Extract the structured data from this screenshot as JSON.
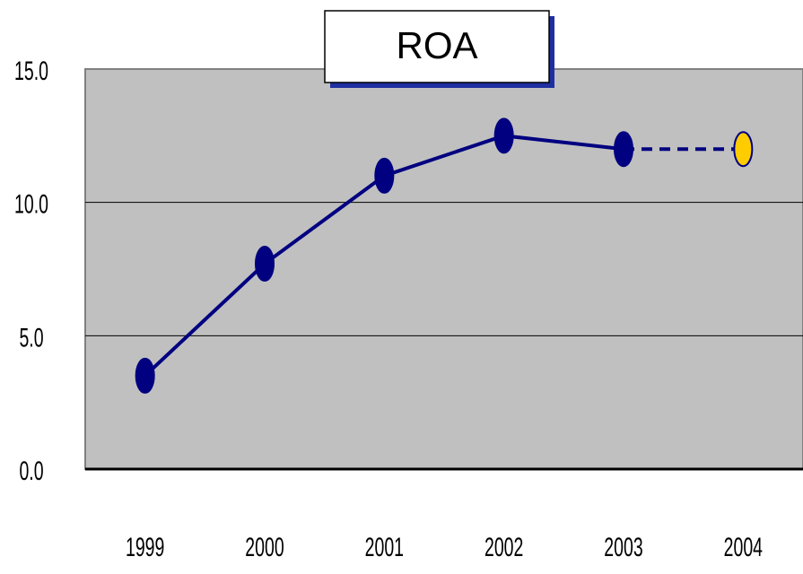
{
  "chart_data": {
    "type": "line",
    "title": "ROA",
    "categories": [
      "1999",
      "2000",
      "2001",
      "2002",
      "2003",
      "2004"
    ],
    "values": [
      3.5,
      7.7,
      11.0,
      12.5,
      12.0,
      12.0
    ],
    "color": "#000080",
    "point_colors": [
      "#000080",
      "#000080",
      "#000080",
      "#000080",
      "#000080",
      "#ffcc00"
    ],
    "line_styles": [
      "solid",
      "solid",
      "solid",
      "solid",
      "solid",
      "dashed"
    ],
    "ylim": [
      0,
      15
    ],
    "yticks": [
      {
        "value": 0,
        "label": "0.0"
      },
      {
        "value": 5,
        "label": "5.0"
      },
      {
        "value": 10,
        "label": "10.0"
      },
      {
        "value": 15,
        "label": "15.0"
      }
    ],
    "grid": true
  }
}
